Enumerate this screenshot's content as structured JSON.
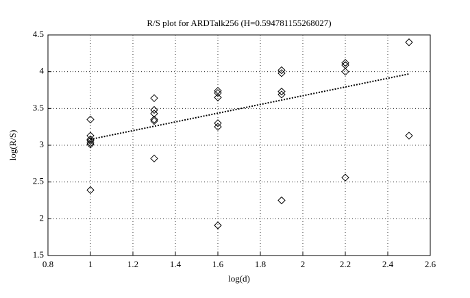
{
  "chart_data": {
    "type": "scatter",
    "title": "R/S plot for ARDTalk256 (H=0.594781155268027)",
    "x_label": "log(d)",
    "y_label": "log(R/S)",
    "series": [
      {
        "mode": "markers",
        "marker": "diamond",
        "color": "#000000",
        "x": [
          1,
          1,
          1,
          1,
          1,
          1,
          1,
          1.3,
          1.3,
          1.3,
          1.3,
          1.3,
          1.3,
          1.6,
          1.6,
          1.6,
          1.6,
          1.6,
          1.6,
          1.9,
          1.9,
          1.9,
          1.9,
          1.9,
          2.2,
          2.2,
          2.2,
          2.2,
          2.5,
          2.5
        ],
        "values": [
          3.35,
          3.13,
          3.08,
          3.06,
          3.03,
          3.01,
          2.39,
          3.64,
          3.48,
          3.43,
          3.35,
          3.33,
          2.82,
          3.74,
          3.71,
          3.65,
          3.3,
          3.25,
          1.91,
          4.02,
          3.98,
          3.73,
          3.69,
          2.25,
          4.12,
          4.09,
          4.0,
          2.56,
          4.4,
          3.13
        ]
      },
      {
        "mode": "dotted-line",
        "color": "#000000",
        "x": [
          1,
          2.5
        ],
        "values": [
          3.08,
          3.97
        ]
      }
    ],
    "xlim": [
      0.8,
      2.6
    ],
    "xticks": [
      0.8,
      1,
      1.2,
      1.4,
      1.6,
      1.8,
      2,
      2.2,
      2.4,
      2.6
    ],
    "ylim": [
      1.5,
      4.5
    ],
    "yticks": [
      1.5,
      2,
      2.5,
      3,
      3.5,
      4,
      4.5
    ],
    "grid": true
  }
}
